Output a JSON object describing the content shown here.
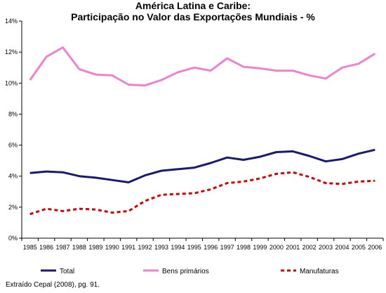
{
  "chart_data": {
    "type": "line",
    "title_line1": "América Latina e Caribe:",
    "title_line2": "Participação no Valor das Exportações Mundiais - %",
    "x": [
      "1985",
      "1986",
      "1987",
      "1988",
      "1989",
      "1990",
      "1991",
      "1992",
      "1993",
      "1994",
      "1995",
      "1996",
      "1997",
      "1998",
      "1999",
      "2000",
      "2001",
      "2002",
      "2003",
      "2004",
      "2005",
      "2006"
    ],
    "y_ticks": [
      "0%",
      "2%",
      "4%",
      "6%",
      "8%",
      "10%",
      "12%",
      "14%"
    ],
    "ylim": [
      0,
      14
    ],
    "grid": false,
    "legend_position": "bottom",
    "series": [
      {
        "name": "Total",
        "color": "#1a1a6e",
        "style": "solid",
        "values": [
          4.2,
          4.3,
          4.25,
          4.0,
          3.9,
          3.75,
          3.6,
          4.05,
          4.35,
          4.45,
          4.55,
          4.85,
          5.2,
          5.05,
          5.25,
          5.55,
          5.6,
          5.3,
          4.95,
          5.1,
          5.45,
          5.7
        ]
      },
      {
        "name": "Bens primários",
        "color": "#ee82cc",
        "style": "solid",
        "values": [
          10.2,
          11.7,
          12.3,
          10.9,
          10.55,
          10.5,
          9.9,
          9.85,
          10.2,
          10.7,
          11.0,
          10.8,
          11.6,
          11.05,
          10.95,
          10.8,
          10.8,
          10.5,
          10.3,
          11.0,
          11.25,
          11.9
        ]
      },
      {
        "name": "Manufaturas",
        "color": "#cc0000",
        "style": "dashed",
        "values": [
          1.55,
          1.9,
          1.75,
          1.9,
          1.85,
          1.65,
          1.75,
          2.4,
          2.8,
          2.85,
          2.9,
          3.15,
          3.55,
          3.65,
          3.85,
          4.15,
          4.25,
          3.95,
          3.55,
          3.5,
          3.65,
          3.7
        ]
      }
    ]
  },
  "source_note": "Extraído Cepal (2008), pg. 91."
}
